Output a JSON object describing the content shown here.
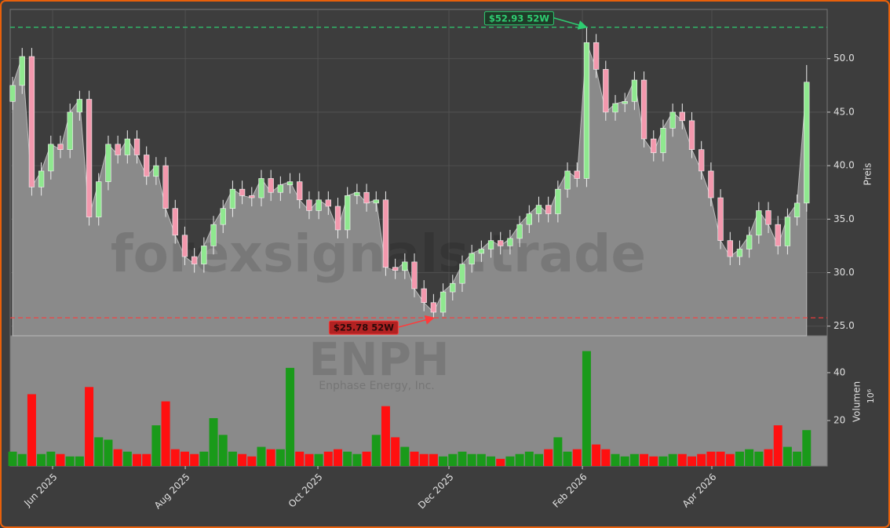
{
  "chart_data": {
    "type": "candlestick",
    "watermark": "forexsignals.trade",
    "symbol": "ENPH",
    "company": "Enphase Energy, Inc.",
    "ylabel": "Preis",
    "volume_label": "Volumen",
    "volume_unit": "10⁶",
    "xlim": [
      -0.25,
      85.15
    ],
    "xticks": [
      {
        "value": 4.18,
        "label": "Jun 2025"
      },
      {
        "value": 18.05,
        "label": "Aug 2025"
      },
      {
        "value": 31.91,
        "label": "Oct 2025"
      },
      {
        "value": 45.61,
        "label": "Dec 2025"
      },
      {
        "value": 59.56,
        "label": "Feb 2026"
      },
      {
        "value": 73.09,
        "label": "Apr 2026"
      }
    ],
    "ylim": [
      24.1,
      54.6
    ],
    "yticks": [
      {
        "value": 25,
        "label": "25.0"
      },
      {
        "value": 30,
        "label": "30.0"
      },
      {
        "value": 35,
        "label": "35.0"
      },
      {
        "value": 40,
        "label": "40.0"
      },
      {
        "value": 45,
        "label": "45.0"
      },
      {
        "value": 50,
        "label": "50.0"
      }
    ],
    "volume_ylim": [
      1,
      55.4
    ],
    "volume_yticks": [
      20,
      40
    ],
    "grid": true,
    "up_color": "#8fe88f",
    "down_color": "#f398ad",
    "volume_up_color": "#1a9a1a",
    "volume_down_color": "#ff1010",
    "area_color": "#8a8a8a",
    "annotations": [
      {
        "value": 52.93,
        "label": "$52.93 52W",
        "color": "#2ecc71",
        "at": 60
      },
      {
        "value": 25.78,
        "label": "$25.78 52W",
        "color": "#ff3b3b",
        "at": 44
      }
    ],
    "open": [
      46.0,
      47.5,
      50.2,
      38.0,
      39.5,
      42.0,
      41.5,
      45.0,
      46.2,
      35.2,
      38.5,
      42.0,
      41.0,
      42.5,
      41.0,
      39.0,
      40.0,
      36.0,
      33.5,
      31.5,
      30.8,
      32.5,
      34.5,
      36.0,
      37.8,
      37.2,
      37.0,
      38.8,
      37.5,
      38.2,
      38.5,
      36.8,
      35.8,
      36.8,
      36.2,
      34.0,
      37.2,
      37.5,
      36.5,
      36.8,
      30.5,
      30.2,
      31.0,
      28.5,
      27.2,
      26.3,
      28.2,
      29.0,
      30.8,
      31.8,
      32.2,
      33.0,
      32.5,
      33.2,
      34.5,
      35.5,
      36.3,
      35.5,
      37.8,
      39.5,
      38.8,
      51.5,
      49.0,
      45.0,
      45.8,
      46.0,
      48.0,
      42.5,
      41.2,
      43.5,
      45.0,
      44.2,
      41.5,
      39.5,
      37.0,
      33.0,
      31.5,
      32.2,
      33.5,
      35.8,
      34.5,
      32.5,
      35.2,
      36.5
    ],
    "high": [
      48.3,
      51.0,
      51.0,
      40.3,
      42.8,
      42.8,
      45.8,
      47.0,
      47.0,
      39.3,
      42.8,
      42.8,
      43.3,
      43.3,
      41.8,
      40.8,
      40.8,
      36.8,
      34.3,
      32.3,
      33.3,
      35.3,
      36.8,
      38.6,
      38.6,
      38.0,
      39.6,
      39.6,
      39.0,
      39.3,
      39.3,
      37.6,
      37.6,
      37.6,
      37.0,
      38.0,
      38.3,
      38.3,
      37.6,
      37.6,
      31.3,
      31.8,
      31.8,
      29.3,
      28.0,
      29.0,
      29.8,
      31.6,
      32.6,
      33.0,
      33.8,
      33.8,
      34.0,
      35.3,
      36.3,
      37.1,
      37.1,
      38.6,
      40.3,
      40.3,
      52.93,
      52.3,
      49.8,
      46.6,
      46.8,
      48.8,
      48.8,
      43.3,
      44.3,
      45.8,
      45.8,
      45.0,
      42.3,
      40.3,
      37.8,
      33.8,
      33.0,
      34.3,
      36.6,
      36.6,
      35.3,
      36.0,
      37.3,
      49.4
    ],
    "low": [
      45.2,
      46.7,
      37.2,
      37.2,
      38.7,
      40.7,
      40.7,
      44.2,
      34.4,
      34.4,
      37.7,
      40.2,
      40.2,
      40.2,
      38.2,
      38.2,
      35.2,
      32.7,
      30.7,
      30.0,
      30.0,
      31.7,
      33.7,
      35.2,
      36.4,
      36.2,
      36.2,
      36.7,
      36.7,
      37.4,
      36.0,
      35.0,
      35.0,
      35.4,
      33.2,
      33.2,
      36.4,
      35.7,
      35.7,
      29.7,
      29.4,
      29.4,
      27.7,
      26.4,
      25.78,
      25.9,
      27.4,
      28.2,
      30.0,
      31.0,
      31.4,
      31.7,
      31.7,
      32.4,
      33.7,
      34.7,
      34.7,
      34.7,
      37.0,
      38.0,
      38.0,
      48.2,
      44.2,
      44.2,
      45.0,
      45.2,
      41.7,
      40.4,
      40.4,
      42.7,
      43.4,
      40.7,
      38.7,
      36.2,
      32.2,
      30.7,
      30.7,
      31.4,
      32.7,
      33.7,
      31.7,
      31.7,
      34.4,
      35.7
    ],
    "close": [
      47.5,
      50.2,
      38.0,
      39.5,
      42.0,
      41.5,
      45.0,
      46.2,
      35.2,
      38.5,
      42.0,
      41.0,
      42.5,
      41.0,
      39.0,
      40.0,
      36.0,
      33.5,
      31.5,
      30.8,
      32.5,
      34.5,
      36.0,
      37.8,
      37.2,
      37.0,
      38.8,
      37.5,
      38.2,
      38.5,
      36.8,
      35.8,
      36.8,
      36.2,
      34.0,
      37.2,
      37.5,
      36.5,
      36.8,
      30.5,
      30.2,
      31.0,
      28.5,
      27.2,
      26.3,
      28.2,
      29.0,
      30.8,
      31.8,
      32.2,
      33.0,
      32.5,
      33.2,
      34.5,
      35.5,
      36.3,
      35.5,
      37.8,
      39.5,
      38.8,
      51.5,
      49.0,
      45.0,
      45.8,
      46.0,
      48.0,
      42.5,
      41.2,
      43.5,
      45.0,
      44.2,
      41.5,
      39.5,
      37.0,
      33.0,
      31.5,
      32.2,
      33.5,
      35.8,
      34.5,
      32.5,
      35.2,
      36.5,
      47.8
    ],
    "volume": [
      7,
      6,
      31,
      6,
      7,
      6,
      5,
      5,
      34,
      13,
      12,
      8,
      7,
      6,
      6,
      18,
      28,
      8,
      7,
      6,
      7,
      21,
      14,
      7,
      6,
      5,
      9,
      8,
      8,
      42,
      7,
      6,
      6,
      7,
      8,
      7,
      6,
      7,
      14,
      26,
      13,
      9,
      7,
      6,
      6,
      5,
      6,
      7,
      6,
      6,
      5,
      4,
      5,
      6,
      7,
      6,
      8,
      13,
      7,
      8,
      49,
      10,
      8,
      6,
      5,
      6,
      6,
      5,
      5,
      6,
      6,
      5,
      6,
      7,
      7,
      6,
      7,
      8,
      7,
      8,
      18,
      9,
      7,
      16
    ]
  }
}
